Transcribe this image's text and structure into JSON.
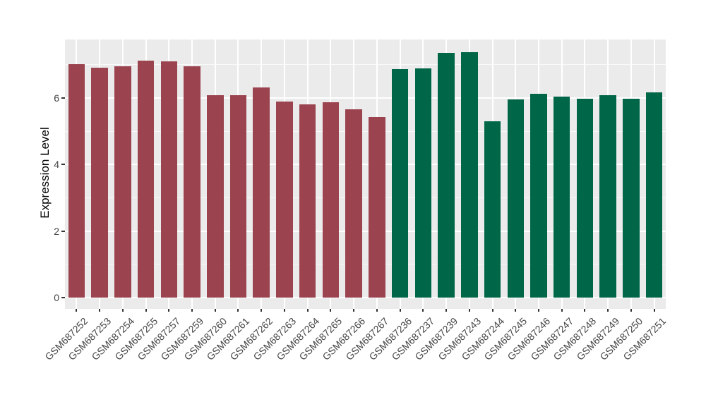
{
  "figure": {
    "background_color": "#FFFFFF"
  },
  "panel": {
    "background_color": "#EBEBEB",
    "gridline_color": "#FFFFFF",
    "tick_mark_color": "#333333",
    "axis_text_color": "#444444",
    "axis_title_color": "#000000"
  },
  "chart_data": {
    "type": "bar",
    "title": "",
    "xlabel": "",
    "ylabel": "Expression Level",
    "ylim": [
      0,
      7.77
    ],
    "y_major_ticks": [
      0,
      2,
      4,
      6
    ],
    "y_minor_gridlines": [
      1,
      3,
      5,
      7
    ],
    "grid": "white major and minor gridlines on gray panel",
    "legend_position": "none",
    "x_tick_rotation_deg": 45,
    "categories": [
      "GSM687252",
      "GSM687253",
      "GSM687254",
      "GSM687255",
      "GSM687257",
      "GSM687259",
      "GSM687260",
      "GSM687261",
      "GSM687262",
      "GSM687263",
      "GSM687264",
      "GSM687265",
      "GSM687266",
      "GSM687267",
      "GSM687236",
      "GSM687237",
      "GSM687239",
      "GSM687243",
      "GSM687244",
      "GSM687245",
      "GSM687246",
      "GSM687247",
      "GSM687248",
      "GSM687249",
      "GSM687250",
      "GSM687251"
    ],
    "values": [
      7.03,
      6.92,
      6.96,
      7.13,
      7.11,
      6.96,
      6.09,
      6.09,
      6.32,
      5.9,
      5.81,
      5.87,
      5.66,
      5.43,
      6.88,
      6.9,
      7.36,
      7.38,
      5.31,
      5.97,
      6.12,
      6.05,
      5.99,
      6.08,
      5.99,
      6.17
    ],
    "groups": [
      "maroon",
      "maroon",
      "maroon",
      "maroon",
      "maroon",
      "maroon",
      "maroon",
      "maroon",
      "maroon",
      "maroon",
      "maroon",
      "maroon",
      "maroon",
      "maroon",
      "green",
      "green",
      "green",
      "green",
      "green",
      "green",
      "green",
      "green",
      "green",
      "green",
      "green",
      "green"
    ],
    "group_colors": {
      "maroon": "#9B4450",
      "green": "#006648"
    }
  }
}
